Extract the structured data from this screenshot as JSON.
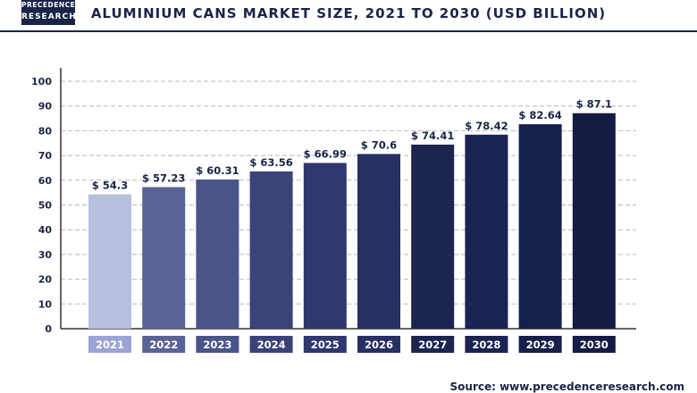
{
  "logo": {
    "line1": "PRECEDENCE",
    "line2": "RESEARCH"
  },
  "header": {
    "title": "ALUMINIUM CANS MARKET SIZE, 2021 TO 2030 (USD BILLION)"
  },
  "footer": {
    "source": "Source: www.precedenceresearch.com"
  },
  "colors": {
    "bars": [
      "#b7bfdf",
      "#5a6396",
      "#495489",
      "#3a4378",
      "#2f3670",
      "#263063",
      "#1c2550",
      "#1a2352",
      "#17204a",
      "#141c43"
    ],
    "year_label_bg": [
      "#9aa5d5",
      "#5a6396",
      "#495489",
      "#3a4378",
      "#2f3670",
      "#263063",
      "#1c2550",
      "#1a2352",
      "#17204a",
      "#141c43"
    ],
    "text": "#1b2447",
    "grid": "#b9b9b9"
  },
  "chart_data": {
    "type": "bar",
    "title": "ALUMINIUM CANS MARKET SIZE, 2021 TO 2030 (USD BILLION)",
    "categories": [
      "2021",
      "2022",
      "2023",
      "2024",
      "2025",
      "2026",
      "2027",
      "2028",
      "2029",
      "2030"
    ],
    "values": [
      54.3,
      57.23,
      60.31,
      63.56,
      66.99,
      70.6,
      74.41,
      78.42,
      82.64,
      87.1
    ],
    "value_labels": [
      "$ 54.3",
      "$ 57.23",
      "$ 60.31",
      "$ 63.56",
      "$ 66.99",
      "$ 70.6",
      "$ 74.41",
      "$ 78.42",
      "$ 82.64",
      "$ 87.1"
    ],
    "y_ticks": [
      "0",
      "10",
      "20",
      "30",
      "40",
      "50",
      "60",
      "70",
      "80",
      "90",
      "100"
    ],
    "ylim": [
      0,
      100
    ],
    "xlabel": "",
    "ylabel": "",
    "grid": "horizontal dashed",
    "legend": "none"
  }
}
